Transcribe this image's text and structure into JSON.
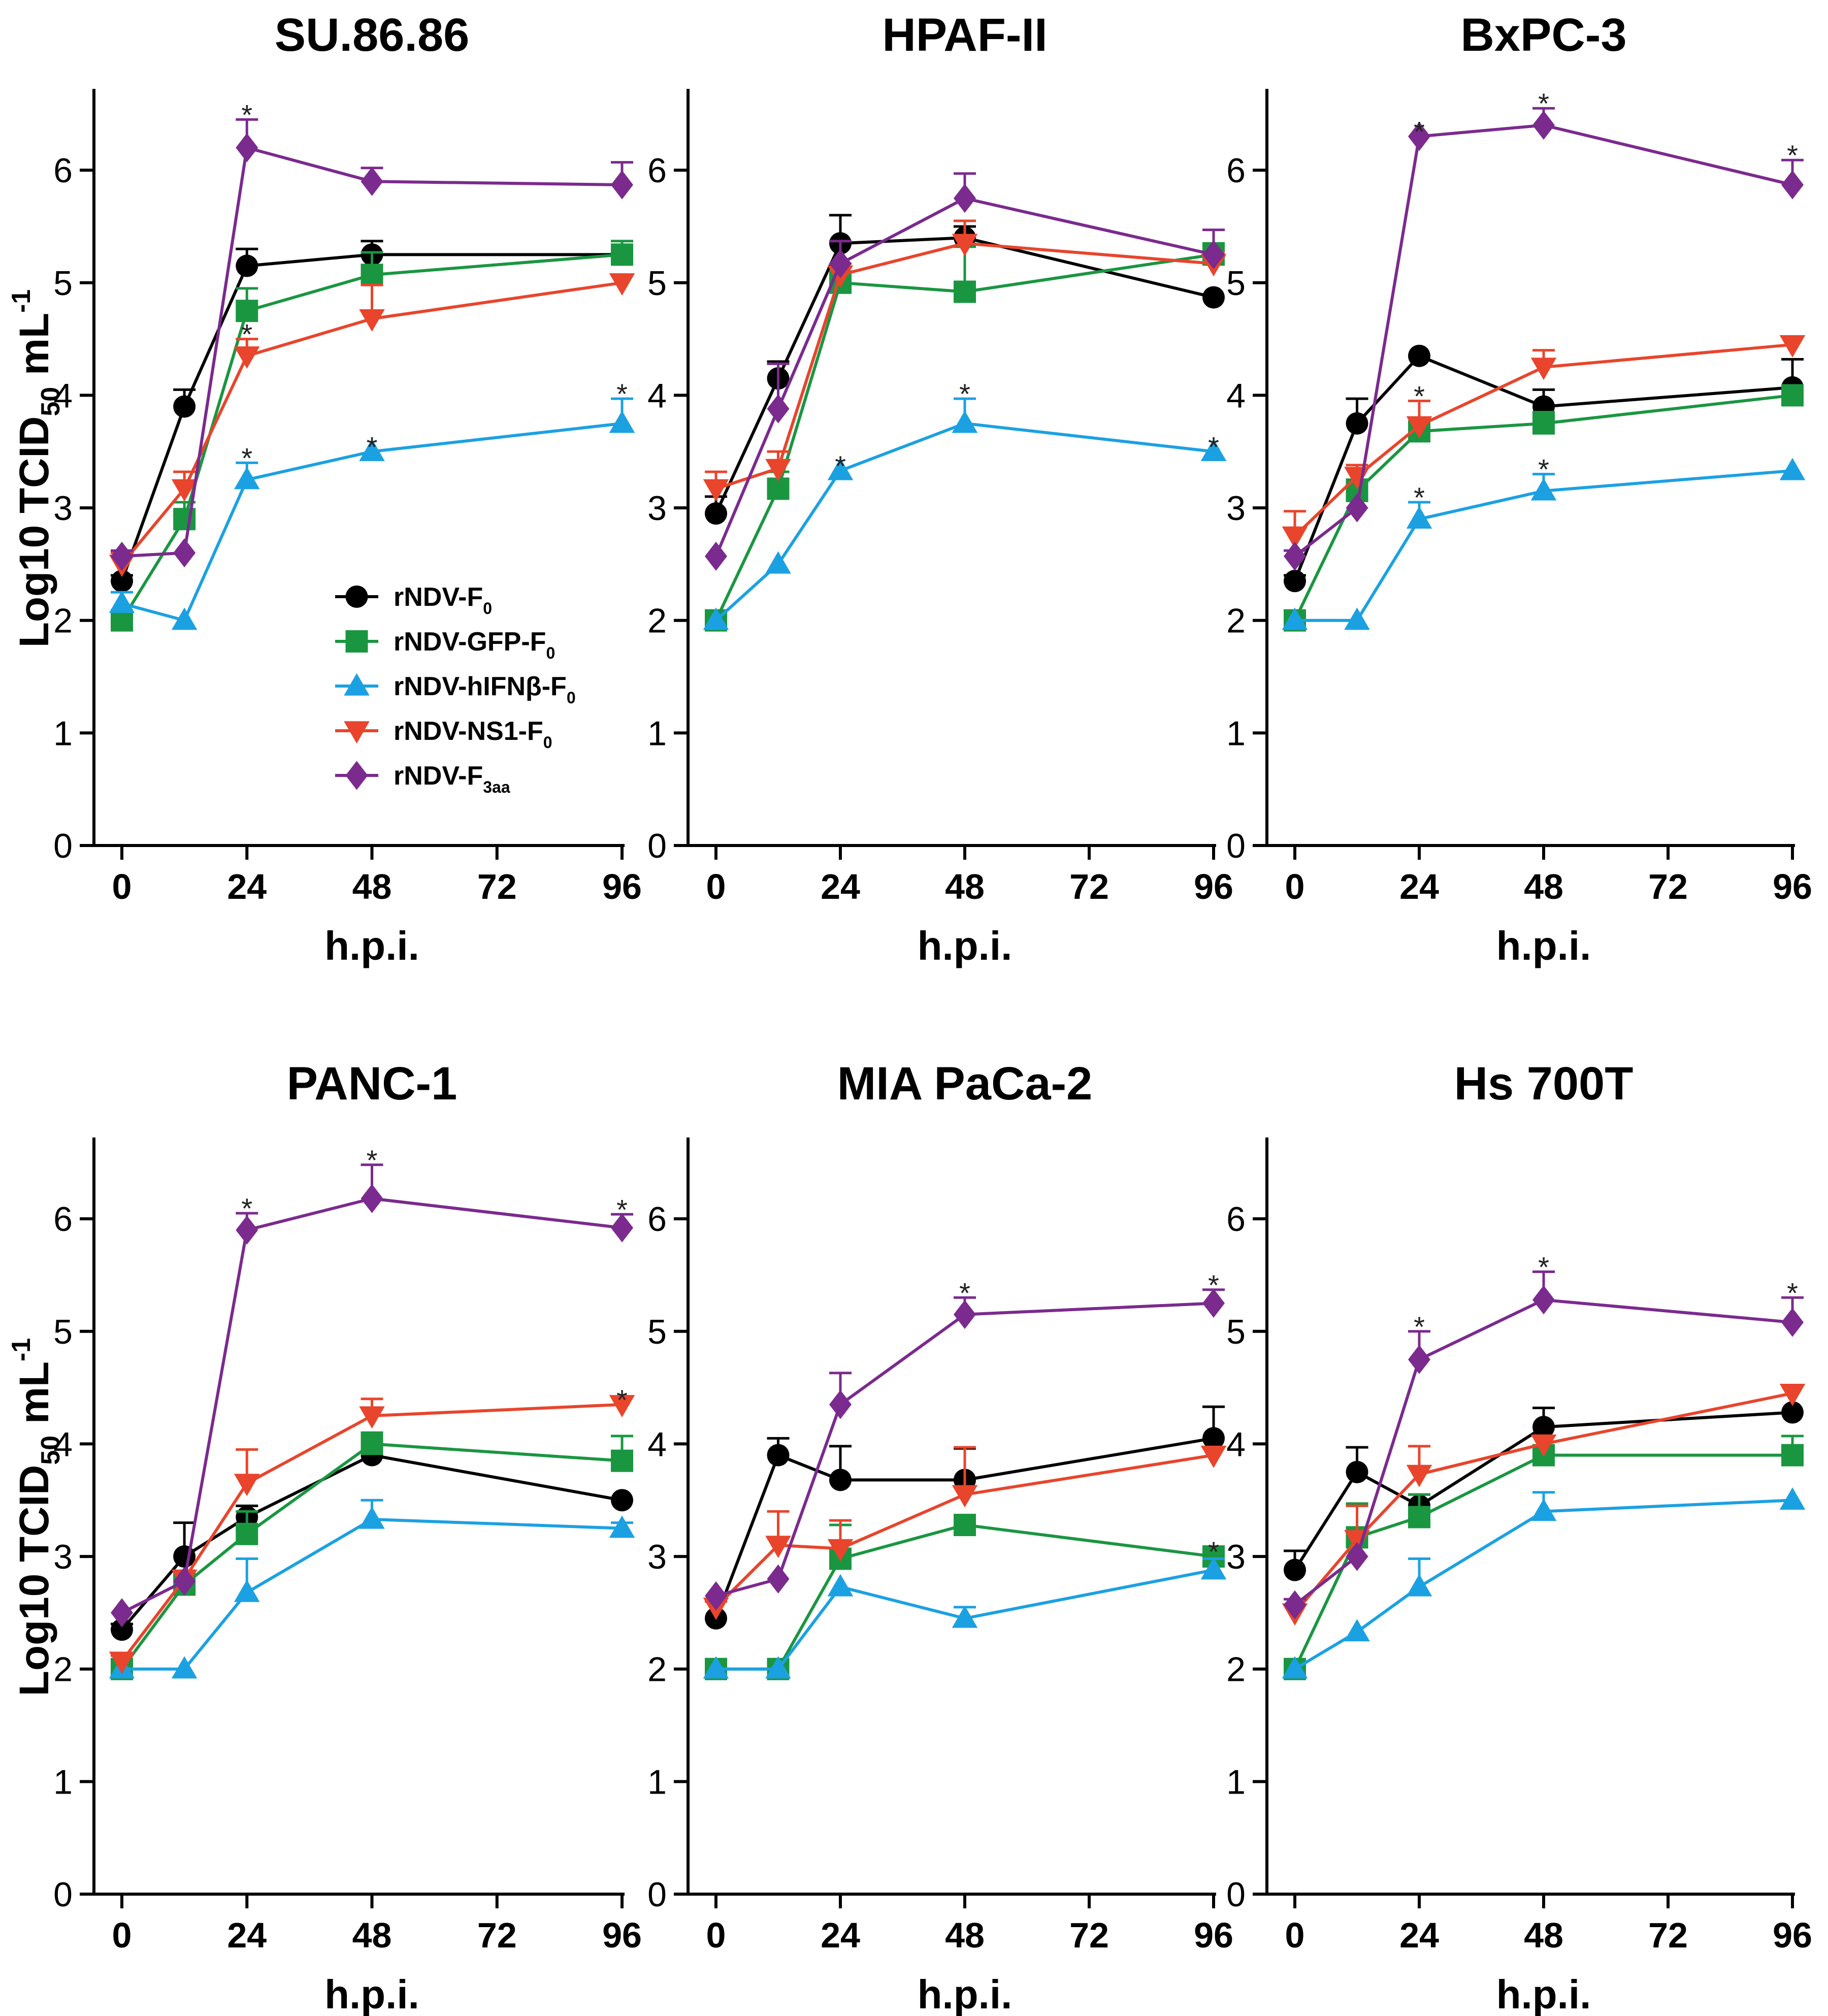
{
  "figure": {
    "y_label_main": "Log10 TCID",
    "y_label_sub": "50",
    "y_label_unit": "mL",
    "y_label_sup": "-1",
    "x_label": "h.p.i.",
    "significance_mark": "*"
  },
  "legend": [
    {
      "name": "rNDV-F",
      "sub": "0",
      "color": "#000000",
      "marker": "circle"
    },
    {
      "name": "rNDV-GFP-F",
      "sub": "0",
      "color": "#1a9641",
      "marker": "square"
    },
    {
      "name": "rNDV-hIFNβ-F",
      "sub": "0",
      "color": "#1ba1e2",
      "marker": "triangle-up"
    },
    {
      "name": "rNDV-NS1-F",
      "sub": "0",
      "color": "#e8452c",
      "marker": "triangle-down"
    },
    {
      "name": "rNDV-F",
      "sub": "3aa",
      "color": "#7b2a8e",
      "marker": "diamond"
    }
  ],
  "chart_data": [
    {
      "type": "line",
      "title": "SU.86.86",
      "x": [
        0,
        12,
        24,
        48,
        96
      ],
      "xticks": [
        0,
        24,
        48,
        72,
        96
      ],
      "yticks": [
        0,
        1,
        2,
        3,
        4,
        5,
        6
      ],
      "xlim": [
        0,
        96
      ],
      "ylim": [
        0,
        6.7
      ],
      "series": [
        {
          "name": "rNDV-F0",
          "values": [
            2.35,
            3.9,
            5.15,
            5.25,
            5.25
          ],
          "err": [
            0.05,
            0.15,
            0.15,
            0.12,
            0
          ],
          "sig": [
            false,
            false,
            false,
            false,
            false
          ]
        },
        {
          "name": "rNDV-GFP-F0",
          "values": [
            2.0,
            2.9,
            4.75,
            5.07,
            5.25
          ],
          "err": [
            0,
            0.15,
            0.2,
            0.2,
            0.12
          ],
          "sig": [
            false,
            false,
            false,
            false,
            false
          ]
        },
        {
          "name": "rNDV-hIFNβ-F0",
          "values": [
            2.15,
            2.0,
            3.25,
            3.5,
            3.75
          ],
          "err": [
            0.1,
            0,
            0.15,
            0,
            0.22
          ],
          "sig": [
            false,
            false,
            true,
            true,
            true
          ]
        },
        {
          "name": "rNDV-NS1-F0",
          "values": [
            2.5,
            3.17,
            4.35,
            4.68,
            5.0
          ],
          "err": [
            0.1,
            0.15,
            0.15,
            0.3,
            0
          ],
          "sig": [
            false,
            false,
            true,
            false,
            false
          ]
        },
        {
          "name": "rNDV-F3aa",
          "values": [
            2.57,
            2.6,
            6.2,
            5.9,
            5.87
          ],
          "err": [
            0.05,
            0,
            0.25,
            0.12,
            0.2
          ],
          "sig": [
            false,
            false,
            true,
            false,
            false
          ]
        }
      ]
    },
    {
      "type": "line",
      "title": "HPAF-II",
      "x": [
        0,
        12,
        24,
        48,
        96
      ],
      "xticks": [
        0,
        24,
        48,
        72,
        96
      ],
      "yticks": [
        0,
        1,
        2,
        3,
        4,
        5,
        6
      ],
      "xlim": [
        0,
        96
      ],
      "ylim": [
        0,
        6.7
      ],
      "series": [
        {
          "name": "rNDV-F0",
          "values": [
            2.95,
            4.15,
            5.35,
            5.4,
            4.87
          ],
          "err": [
            0.15,
            0.15,
            0.25,
            0.1,
            0
          ],
          "sig": [
            false,
            false,
            false,
            false,
            false
          ]
        },
        {
          "name": "rNDV-GFP-F0",
          "values": [
            2.0,
            3.17,
            5.0,
            4.92,
            5.25
          ],
          "err": [
            0,
            0.15,
            0.1,
            0.4,
            0.1
          ],
          "sig": [
            false,
            false,
            false,
            false,
            false
          ]
        },
        {
          "name": "rNDV-hIFNβ-F0",
          "values": [
            2.0,
            2.5,
            3.33,
            3.75,
            3.5
          ],
          "err": [
            0,
            0,
            0,
            0.22,
            0
          ],
          "sig": [
            false,
            false,
            true,
            true,
            true
          ]
        },
        {
          "name": "rNDV-NS1-F0",
          "values": [
            3.17,
            3.35,
            5.07,
            5.35,
            5.17
          ],
          "err": [
            0.15,
            0.15,
            0.1,
            0.2,
            0.1
          ],
          "sig": [
            false,
            false,
            false,
            false,
            false
          ]
        },
        {
          "name": "rNDV-F3aa",
          "values": [
            2.57,
            3.88,
            5.17,
            5.75,
            5.25
          ],
          "err": [
            0,
            0.4,
            0.2,
            0.22,
            0.22
          ],
          "sig": [
            false,
            false,
            false,
            false,
            false
          ]
        }
      ]
    },
    {
      "type": "line",
      "title": "BxPC-3",
      "x": [
        0,
        12,
        24,
        48,
        96
      ],
      "xticks": [
        0,
        24,
        48,
        72,
        96
      ],
      "yticks": [
        0,
        1,
        2,
        3,
        4,
        5,
        6
      ],
      "xlim": [
        0,
        96
      ],
      "ylim": [
        0,
        6.7
      ],
      "series": [
        {
          "name": "rNDV-F0",
          "values": [
            2.35,
            3.75,
            4.35,
            3.9,
            4.07
          ],
          "err": [
            0.05,
            0.22,
            0,
            0.15,
            0.25
          ],
          "sig": [
            false,
            false,
            false,
            false,
            false
          ]
        },
        {
          "name": "rNDV-GFP-F0",
          "values": [
            2.0,
            3.15,
            3.68,
            3.75,
            4.0
          ],
          "err": [
            0,
            0.1,
            0.05,
            0.1,
            0
          ],
          "sig": [
            false,
            false,
            false,
            false,
            false
          ]
        },
        {
          "name": "rNDV-hIFNβ-F0",
          "values": [
            2.0,
            2.0,
            2.9,
            3.15,
            3.33
          ],
          "err": [
            0,
            0,
            0.15,
            0.15,
            0
          ],
          "sig": [
            false,
            false,
            true,
            true,
            false
          ]
        },
        {
          "name": "rNDV-NS1-F0",
          "values": [
            2.75,
            3.28,
            3.73,
            4.25,
            4.45
          ],
          "err": [
            0.22,
            0.1,
            0.22,
            0.15,
            0
          ],
          "sig": [
            false,
            false,
            true,
            false,
            false
          ]
        },
        {
          "name": "rNDV-F3aa",
          "values": [
            2.57,
            3.0,
            6.3,
            6.4,
            5.87
          ],
          "err": [
            0.05,
            0,
            0,
            0.15,
            0.22
          ],
          "sig": [
            false,
            false,
            true,
            true,
            true
          ]
        }
      ]
    },
    {
      "type": "line",
      "title": "PANC-1",
      "x": [
        0,
        12,
        24,
        48,
        96
      ],
      "xticks": [
        0,
        24,
        48,
        72,
        96
      ],
      "yticks": [
        0,
        1,
        2,
        3,
        4,
        5,
        6
      ],
      "xlim": [
        0,
        96
      ],
      "ylim": [
        0,
        6.7
      ],
      "series": [
        {
          "name": "rNDV-F0",
          "values": [
            2.35,
            3.0,
            3.35,
            3.9,
            3.5
          ],
          "err": [
            0.05,
            0.3,
            0.1,
            0.1,
            0
          ],
          "sig": [
            false,
            false,
            false,
            false,
            false
          ]
        },
        {
          "name": "rNDV-GFP-F0",
          "values": [
            2.0,
            2.75,
            3.2,
            4.0,
            3.85
          ],
          "err": [
            0,
            0.1,
            0.2,
            0.1,
            0.22
          ],
          "sig": [
            false,
            false,
            false,
            false,
            false
          ]
        },
        {
          "name": "rNDV-hIFNβ-F0",
          "values": [
            2.0,
            2.0,
            2.68,
            3.33,
            3.25
          ],
          "err": [
            0,
            0,
            0.3,
            0.17,
            0.05
          ],
          "sig": [
            false,
            false,
            false,
            false,
            false
          ]
        },
        {
          "name": "rNDV-NS1-F0",
          "values": [
            2.07,
            2.8,
            3.65,
            4.25,
            4.35
          ],
          "err": [
            0.05,
            0,
            0.3,
            0.15,
            0
          ],
          "sig": [
            false,
            false,
            false,
            false,
            true
          ]
        },
        {
          "name": "rNDV-F3aa",
          "values": [
            2.5,
            2.78,
            5.9,
            6.18,
            5.92
          ],
          "err": [
            0,
            0,
            0.15,
            0.3,
            0.12
          ],
          "sig": [
            false,
            false,
            true,
            true,
            true
          ]
        }
      ]
    },
    {
      "type": "line",
      "title": "MIA PaCa-2",
      "x": [
        0,
        12,
        24,
        48,
        96
      ],
      "xticks": [
        0,
        24,
        48,
        72,
        96
      ],
      "yticks": [
        0,
        1,
        2,
        3,
        4,
        5,
        6
      ],
      "xlim": [
        0,
        96
      ],
      "ylim": [
        0,
        6.7
      ],
      "series": [
        {
          "name": "rNDV-F0",
          "values": [
            2.45,
            3.9,
            3.68,
            3.68,
            4.05
          ],
          "err": [
            0,
            0.15,
            0.3,
            0.28,
            0.28
          ],
          "sig": [
            false,
            false,
            false,
            false,
            false
          ]
        },
        {
          "name": "rNDV-GFP-F0",
          "values": [
            2.0,
            2.0,
            2.98,
            3.28,
            3.0
          ],
          "err": [
            0,
            0,
            0.3,
            0,
            0
          ],
          "sig": [
            false,
            false,
            false,
            false,
            true
          ]
        },
        {
          "name": "rNDV-hIFNβ-F0",
          "values": [
            2.0,
            2.0,
            2.73,
            2.45,
            2.88
          ],
          "err": [
            0,
            0,
            0,
            0.1,
            0.1
          ],
          "sig": [
            false,
            false,
            false,
            false,
            false
          ]
        },
        {
          "name": "rNDV-NS1-F0",
          "values": [
            2.55,
            3.1,
            3.07,
            3.55,
            3.9
          ],
          "err": [
            0.05,
            0.3,
            0.25,
            0.42,
            0
          ],
          "sig": [
            false,
            false,
            false,
            false,
            false
          ]
        },
        {
          "name": "rNDV-F3aa",
          "values": [
            2.65,
            2.8,
            4.35,
            5.15,
            5.25
          ],
          "err": [
            0,
            0,
            0.28,
            0.15,
            0.12
          ],
          "sig": [
            false,
            false,
            false,
            true,
            true
          ]
        }
      ]
    },
    {
      "type": "line",
      "title": "Hs 700T",
      "x": [
        0,
        12,
        24,
        48,
        96
      ],
      "xticks": [
        0,
        24,
        48,
        72,
        96
      ],
      "yticks": [
        0,
        1,
        2,
        3,
        4,
        5,
        6
      ],
      "xlim": [
        0,
        96
      ],
      "ylim": [
        0,
        6.7
      ],
      "series": [
        {
          "name": "rNDV-F0",
          "values": [
            2.88,
            3.75,
            3.45,
            4.15,
            4.28
          ],
          "err": [
            0.17,
            0.22,
            0.1,
            0.17,
            0
          ],
          "sig": [
            false,
            false,
            false,
            false,
            false
          ]
        },
        {
          "name": "rNDV-GFP-F0",
          "values": [
            2.0,
            3.17,
            3.35,
            3.9,
            3.9
          ],
          "err": [
            0,
            0.3,
            0.2,
            0,
            0.17
          ],
          "sig": [
            false,
            false,
            false,
            false,
            false
          ]
        },
        {
          "name": "rNDV-hIFNβ-F0",
          "values": [
            2.0,
            2.33,
            2.73,
            3.4,
            3.5
          ],
          "err": [
            0,
            0,
            0.25,
            0.17,
            0
          ],
          "sig": [
            false,
            false,
            false,
            false,
            false
          ]
        },
        {
          "name": "rNDV-NS1-F0",
          "values": [
            2.5,
            3.15,
            3.73,
            4.0,
            4.45
          ],
          "err": [
            0,
            0.3,
            0.25,
            0,
            0
          ],
          "sig": [
            false,
            false,
            false,
            false,
            false
          ]
        },
        {
          "name": "rNDV-F3aa",
          "values": [
            2.57,
            3.0,
            4.75,
            5.28,
            5.08
          ],
          "err": [
            0.05,
            0,
            0.25,
            0.25,
            0.22
          ],
          "sig": [
            false,
            false,
            true,
            true,
            true
          ]
        }
      ]
    }
  ]
}
